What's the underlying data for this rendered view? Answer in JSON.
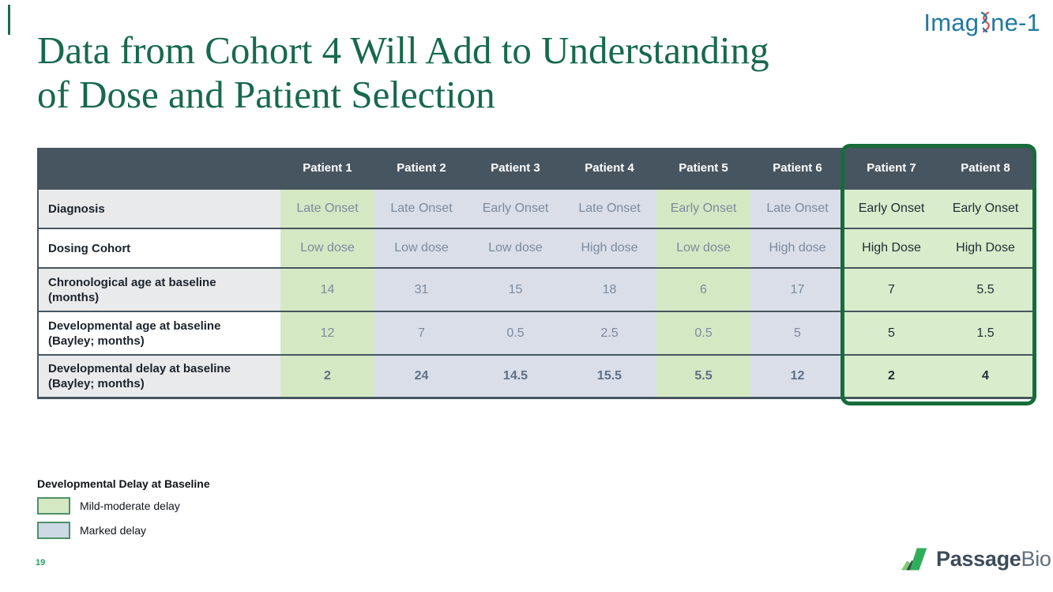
{
  "slide": {
    "title_line1": "Data from Cohort 4 Will Add to Understanding",
    "title_line2": "of Dose and Patient Selection",
    "page_number": "19"
  },
  "logos": {
    "imagine": {
      "part1": "Imag",
      "part2": "ne-1"
    },
    "passage": {
      "bold": "Passage",
      "regular": "Bio"
    }
  },
  "table": {
    "columns": [
      "Patient 1",
      "Patient 2",
      "Patient 3",
      "Patient 4",
      "Patient 5",
      "Patient 6",
      "Patient 7",
      "Patient 8"
    ],
    "column_styles": [
      "green",
      "blue",
      "blue",
      "blue",
      "green",
      "blue",
      "boxed",
      "boxed"
    ],
    "rows": [
      {
        "label": "Diagnosis",
        "label_bg": "gray",
        "bold_values": false,
        "values": [
          "Late Onset",
          "Late Onset",
          "Early Onset",
          "Late Onset",
          "Early Onset",
          "Late Onset",
          "Early Onset",
          "Early Onset"
        ]
      },
      {
        "label": "Dosing Cohort",
        "label_bg": "white",
        "bold_values": false,
        "values": [
          "Low dose",
          "Low dose",
          "Low dose",
          "High dose",
          "Low dose",
          "High dose",
          "High Dose",
          "High Dose"
        ]
      },
      {
        "label": "Chronological age at baseline (months)",
        "label_bg": "gray",
        "bold_values": false,
        "values": [
          "14",
          "31",
          "15",
          "18",
          "6",
          "17",
          "7",
          "5.5"
        ]
      },
      {
        "label": "Developmental age at baseline (Bayley; months)",
        "label_bg": "white",
        "bold_values": false,
        "values": [
          "12",
          "7",
          "0.5",
          "2.5",
          "0.5",
          "5",
          "5",
          "1.5"
        ]
      },
      {
        "label": "Developmental delay at baseline (Bayley; months)",
        "label_bg": "gray",
        "bold_values": true,
        "values": [
          "2",
          "24",
          "14.5",
          "15.5",
          "5.5",
          "12",
          "2",
          "4"
        ]
      }
    ]
  },
  "legend": {
    "title": "Developmental Delay at Baseline",
    "items": [
      {
        "label": "Mild-moderate delay",
        "style": "mild",
        "color": "#D5E8C4"
      },
      {
        "label": "Marked delay",
        "style": "marked",
        "color": "#CDD9E5"
      }
    ]
  },
  "colors": {
    "title_green": "#17694C",
    "header_bg": "#475560",
    "cell_green": "#D5E8C4",
    "cell_blue": "#D9DEE8",
    "cell_boxed_green": "#D9ECCB",
    "highlight_box_border": "#176C3B",
    "imagine_teal": "#2279A2",
    "page_number_green": "#21A05F",
    "passage_green": "#2FAE5A",
    "passage_light_green": "#7FCB72",
    "passage_slate": "#3E4B59"
  }
}
